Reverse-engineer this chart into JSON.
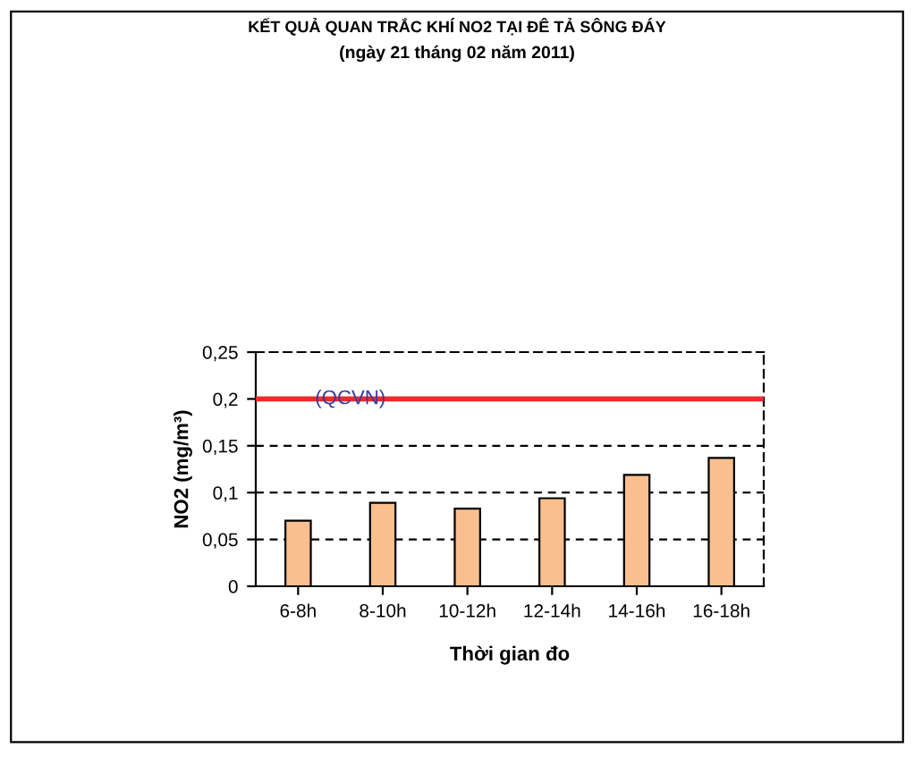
{
  "chart_data": {
    "type": "bar",
    "title": "KẾT QUẢ QUAN TRẮC KHÍ NO2 TẠI ĐÊ TẢ SÔNG ĐÁY",
    "subtitle": "(ngày 21 tháng 02 năm 2011)",
    "xlabel": "Thời gian đo",
    "ylabel": "NO2 (mg/m³)",
    "categories": [
      "6-8h",
      "8-10h",
      "10-12h",
      "12-14h",
      "14-16h",
      "16-18h"
    ],
    "values": [
      0.07,
      0.089,
      0.083,
      0.094,
      0.119,
      0.137
    ],
    "color": "#f9bf8f",
    "ylim": [
      0,
      0.25
    ],
    "yticks": [
      {
        "value": 0,
        "label": "0"
      },
      {
        "value": 0.05,
        "label": "0,05"
      },
      {
        "value": 0.1,
        "label": "0,1"
      },
      {
        "value": 0.15,
        "label": "0,15"
      },
      {
        "value": 0.2,
        "label": "0,2"
      },
      {
        "value": 0.25,
        "label": "0,25"
      }
    ],
    "grid": "y",
    "legend": false,
    "ref_lines": [
      {
        "axis": "y",
        "value": 0.2,
        "label": "(QCVN)",
        "color": "#ee2b2b"
      }
    ]
  }
}
